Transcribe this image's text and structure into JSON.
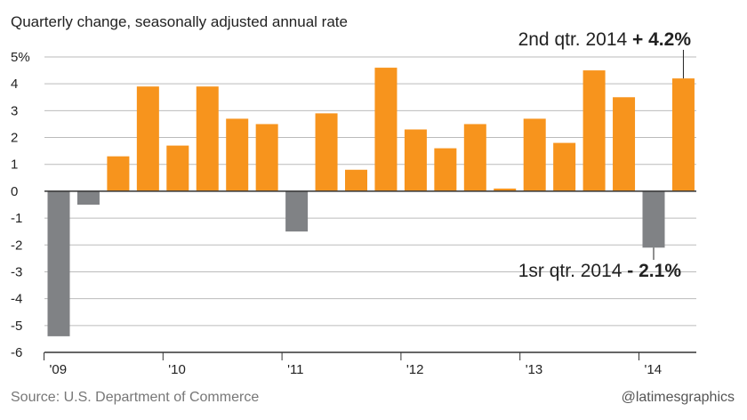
{
  "subtitle": "Quarterly change, seasonally adjusted annual rate",
  "source": "Source: U.S. Department of Commerce",
  "credit": "@latimesgraphics",
  "colors": {
    "positive": "#f7941d",
    "negative": "#808285",
    "grid": "#bbbbbb",
    "axis": "#333333"
  },
  "chart_data": {
    "type": "bar",
    "categories": [
      "2009 Q1",
      "2009 Q2",
      "2009 Q3",
      "2009 Q4",
      "2010 Q1",
      "2010 Q2",
      "2010 Q3",
      "2010 Q4",
      "2011 Q1",
      "2011 Q2",
      "2011 Q3",
      "2011 Q4",
      "2012 Q1",
      "2012 Q2",
      "2012 Q3",
      "2012 Q4",
      "2013 Q1",
      "2013 Q2",
      "2013 Q3",
      "2013 Q4",
      "2014 Q1",
      "2014 Q2"
    ],
    "values": [
      -5.4,
      -0.5,
      1.3,
      3.9,
      1.7,
      3.9,
      2.7,
      2.5,
      -1.5,
      2.9,
      0.8,
      4.6,
      2.3,
      1.6,
      2.5,
      0.1,
      2.7,
      1.8,
      4.5,
      3.5,
      -2.1,
      4.2
    ],
    "ylim": [
      -6,
      5
    ],
    "y_ticks": [
      "5%",
      "4",
      "3",
      "2",
      "1",
      "0",
      "-1",
      "-2",
      "-3",
      "-4",
      "-5",
      "-6"
    ],
    "x_tick_labels": [
      "'09",
      "'10",
      "'11",
      "'12",
      "'13",
      "'14"
    ],
    "grid": true,
    "annotations": [
      {
        "text": "2nd qtr. 2014 ",
        "value_text": "+ 4.2%",
        "target_index": 21
      },
      {
        "text": "1sr qtr. 2014 ",
        "value_text": "- 2.1%",
        "target_index": 20
      }
    ]
  }
}
